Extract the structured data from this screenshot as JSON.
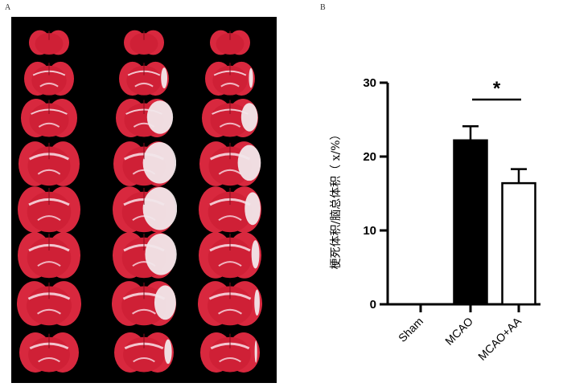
{
  "panel_a": {
    "label": "A",
    "columns": [
      "Sham",
      "MCAO",
      "MCAO+AA"
    ],
    "rows": 8
  },
  "panel_b": {
    "label": "B"
  },
  "chart_data": {
    "type": "bar",
    "categories": [
      "Sham",
      "MCAO",
      "MCAO+AA"
    ],
    "values": [
      0,
      22.2,
      16.4
    ],
    "errors": [
      0,
      1.9,
      1.9
    ],
    "bar_colors": [
      "#000000",
      "#000000",
      "#ffffff"
    ],
    "ylabel": "梗死体积/脑总体积（ x/%）",
    "xlabel": "",
    "ylim": [
      0,
      30
    ],
    "yticks": [
      "0",
      "10",
      "20",
      "30"
    ],
    "significance": {
      "between": [
        "MCAO",
        "MCAO+AA"
      ],
      "label": "*"
    },
    "grid": false
  }
}
